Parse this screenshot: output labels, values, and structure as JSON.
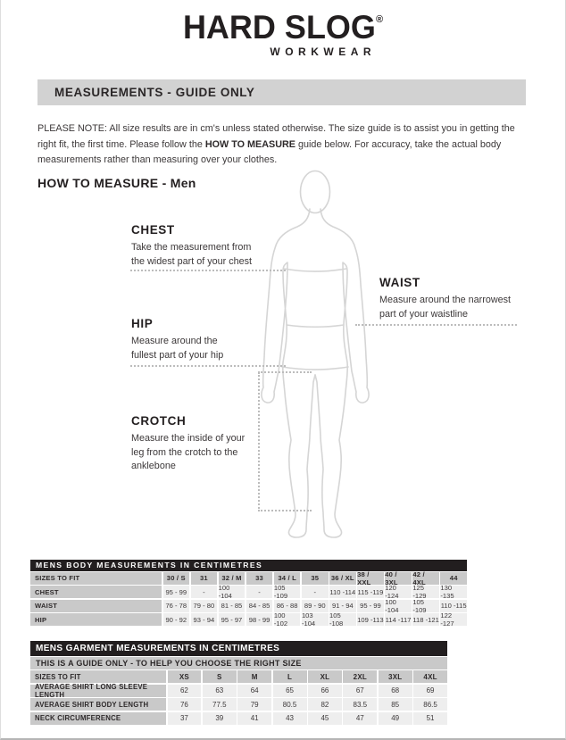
{
  "logo": {
    "brand": "HARD SLOG",
    "registered_mark": "®",
    "tagline": "WORKWEAR"
  },
  "banner_title": "MEASUREMENTS - GUIDE ONLY",
  "note": {
    "prefix": "PLEASE NOTE:  All size results are in cm's unless stated otherwise. The size guide is to assist you in getting the right fit, the first time. Please follow the ",
    "bold": "HOW TO MEASURE",
    "suffix": " guide below. For accuracy, take the actual body measurements rather than measuring over your clothes."
  },
  "section_title": "HOW TO MEASURE - Men",
  "measure_guides": {
    "chest": {
      "title": "CHEST",
      "line1": "Take the measurement from",
      "line2": "the widest part of your chest"
    },
    "waist": {
      "title": "WAIST",
      "line1": "Measure around the narrowest",
      "line2": "part of  your waistline"
    },
    "hip": {
      "title": "HIP",
      "line1": "Measure around the",
      "line2": "fullest part of your hip"
    },
    "crotch": {
      "title": "CROTCH",
      "line1": "Measure the inside of your",
      "line2": "leg from the crotch to the",
      "line3": "anklebone"
    }
  },
  "tables": [
    {
      "title": "MENS BODY MEASUREMENTS IN CENTIMETRES",
      "header": [
        "SIZES TO FIT",
        "30 / S",
        "31",
        "32 / M",
        "33",
        "34 / L",
        "35",
        "36 / XL",
        "38 / XXL",
        "40 / 3XL",
        "42 / 4XL",
        "44"
      ],
      "rows": [
        [
          "CHEST",
          "95 - 99",
          "-",
          "100 -104",
          "-",
          "105 -109",
          "-",
          "110 -114",
          "115 -119",
          "120 -124",
          "125 -129",
          "130 -135"
        ],
        [
          "WAIST",
          "76 - 78",
          "79 - 80",
          "81 - 85",
          "84 - 85",
          "86 - 88",
          "89 - 90",
          "91 - 94",
          "95 - 99",
          "100 -104",
          "105 -109",
          "110 -115"
        ],
        [
          "HIP",
          "90 - 92",
          "93 - 94",
          "95 - 97",
          "98 - 99",
          "100 -102",
          "103 -104",
          "105 -108",
          "109 -113",
          "114 -117",
          "118 -121",
          "122 -127"
        ]
      ]
    },
    {
      "title": "MENS GARMENT MEASUREMENTS IN CENTIMETRES",
      "subtitle": "THIS IS A GUIDE ONLY - TO HELP YOU CHOOSE THE RIGHT SIZE",
      "header": [
        "SIZES TO FIT",
        "XS",
        "S",
        "M",
        "L",
        "XL",
        "2XL",
        "3XL",
        "4XL"
      ],
      "rows": [
        [
          "AVERAGE SHIRT LONG SLEEVE LENGTH",
          "62",
          "63",
          "64",
          "65",
          "66",
          "67",
          "68",
          "69"
        ],
        [
          "AVERAGE SHIRT BODY LENGTH",
          "76",
          "77.5",
          "79",
          "80.5",
          "82",
          "83.5",
          "85",
          "86.5"
        ],
        [
          "NECK CIRCUMFERENCE",
          "37",
          "39",
          "41",
          "43",
          "45",
          "47",
          "49",
          "51"
        ]
      ]
    }
  ],
  "colors": {
    "banner_bg": "#d2d2d2",
    "table_title_bg": "#221e1f",
    "table_label_bg": "#c9c9c9",
    "table_cell_bg": "#eeeeee",
    "figure_outline": "#d5d5d5",
    "dotted_line": "#bcbcbc",
    "text": "#2e2a2b"
  }
}
